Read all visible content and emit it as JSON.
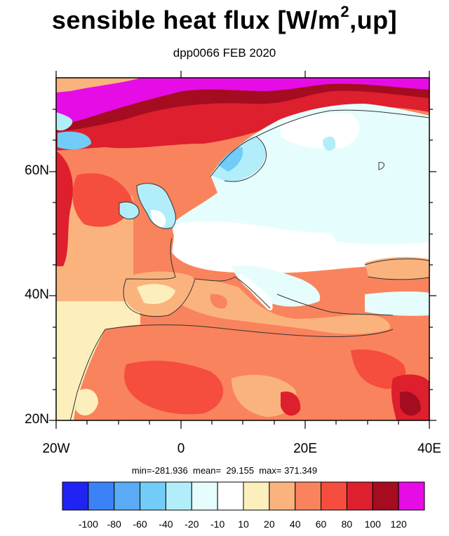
{
  "title": {
    "main": "sensible heat flux [W/m",
    "sup": "2",
    "tail": ",up]"
  },
  "subtitle": "dpp0066 FEB 2020",
  "stats": "min=-281.936  mean=  29.155  max= 371.349",
  "axes": {
    "lat_labels": [
      "60N",
      "40N",
      "20N"
    ],
    "lon_labels": [
      "20W",
      "0",
      "20E",
      "40E"
    ]
  },
  "colorbar": {
    "colors": [
      "#1f24f5",
      "#3c82f7",
      "#5aaaf5",
      "#72ccf8",
      "#b2eefa",
      "#e6fdfd",
      "#ffffff",
      "#fdefbc",
      "#fbb37e",
      "#f9835c",
      "#f54d3e",
      "#de1f2e",
      "#a50c20",
      "#e60ce6"
    ],
    "labels": [
      "-100",
      "-80",
      "-60",
      "-40",
      "-20",
      "-10",
      "10",
      "20",
      "40",
      "60",
      "80",
      "100",
      "120"
    ]
  }
}
